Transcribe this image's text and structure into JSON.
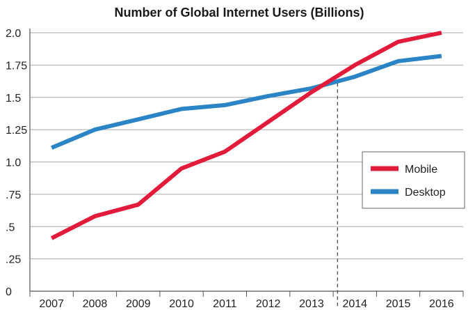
{
  "chart_data": {
    "type": "line",
    "title": "Number of Global Internet Users (Billions)",
    "xlabel": "",
    "ylabel": "",
    "x": [
      "2007",
      "2008",
      "2009",
      "2010",
      "2011",
      "2012",
      "2013",
      "2014",
      "2015",
      "2016"
    ],
    "ylim": [
      0,
      2.0
    ],
    "yticks": [
      0,
      0.25,
      0.5,
      0.75,
      1.0,
      1.25,
      1.5,
      1.75,
      2.0
    ],
    "ytick_labels": [
      "0",
      ".25",
      ".5",
      ".75",
      "1.0",
      "1.25",
      "1.5",
      "1.75",
      "2.0"
    ],
    "grid": "horizontal",
    "legend_position": "right",
    "series": [
      {
        "name": "Mobile",
        "color": "#e31b3a",
        "values": [
          0.41,
          0.58,
          0.67,
          0.95,
          1.08,
          1.31,
          1.54,
          1.75,
          1.93,
          2.0
        ]
      },
      {
        "name": "Desktop",
        "color": "#2b84c6",
        "values": [
          1.11,
          1.25,
          1.33,
          1.41,
          1.44,
          1.51,
          1.57,
          1.66,
          1.78,
          1.82
        ]
      }
    ],
    "annotations": [
      {
        "type": "vertical-dashed-line",
        "x": "2013.6",
        "description": "crossover point"
      }
    ]
  }
}
